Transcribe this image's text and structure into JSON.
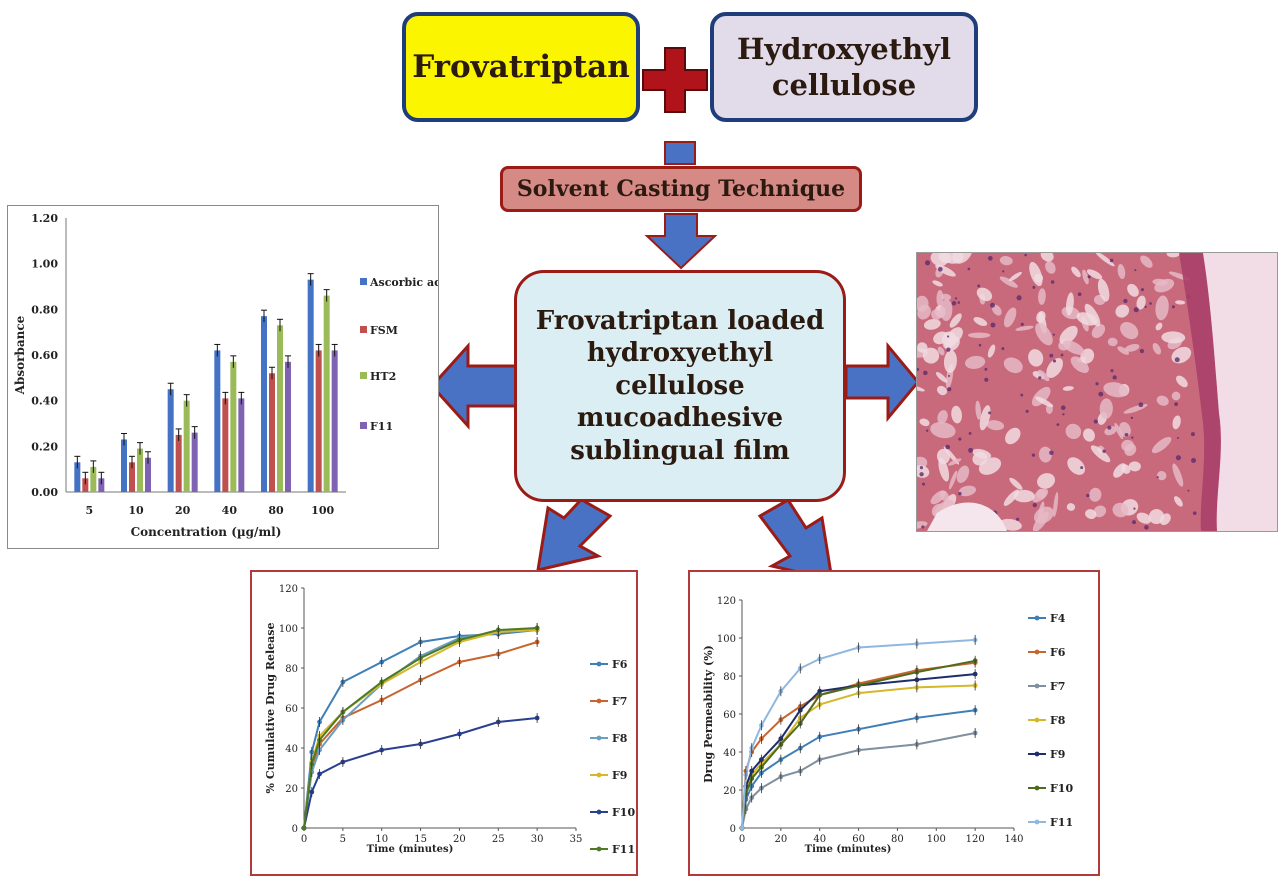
{
  "flow": {
    "drug": "Frovatriptan",
    "polymer_line1": "Hydroxyethyl",
    "polymer_line2": "cellulose",
    "technique": "Solvent Casting Technique",
    "product_lines": [
      "Frovatriptan loaded",
      "hydroxyethyl",
      "cellulose",
      "mucoadhesive",
      "sublingual film"
    ]
  },
  "colors": {
    "drug_box": "#fbf500",
    "polymer_box": "#e2dbea",
    "technique_box": "#d58a86",
    "product_box": "#dbeef3",
    "arrow_fill": "#4a72c4",
    "arrow_stroke": "#9b1b17",
    "plus": "#b0141a"
  },
  "chart_data": [
    {
      "type": "bar",
      "xlabel": "Concentration (µg/ml)",
      "ylabel": "Absorbance",
      "ylim": [
        0,
        1.2
      ],
      "y_ticks": [
        "0.00",
        "0.20",
        "0.40",
        "0.60",
        "0.80",
        "1.00",
        "1.20"
      ],
      "categories": [
        "5",
        "10",
        "20",
        "40",
        "80",
        "100"
      ],
      "legend_position": "right",
      "series": [
        {
          "name": "Ascorbic acid",
          "color": "#4472c4",
          "values": [
            0.13,
            0.23,
            0.45,
            0.62,
            0.77,
            0.93
          ]
        },
        {
          "name": "FSM",
          "color": "#c0504d",
          "values": [
            0.06,
            0.13,
            0.25,
            0.41,
            0.52,
            0.62
          ]
        },
        {
          "name": "HT2",
          "color": "#9bbb59",
          "values": [
            0.11,
            0.19,
            0.4,
            0.57,
            0.73,
            0.86
          ]
        },
        {
          "name": "F11",
          "color": "#7f63b2",
          "values": [
            0.06,
            0.15,
            0.26,
            0.41,
            0.57,
            0.62
          ]
        }
      ]
    },
    {
      "type": "line",
      "xlabel": "Time (minutes)",
      "ylabel": "% Cumulative Drug Release",
      "xlim": [
        0,
        35
      ],
      "ylim": [
        0,
        120
      ],
      "x_ticks": [
        0,
        5,
        10,
        15,
        20,
        25,
        30,
        35
      ],
      "y_ticks": [
        0,
        20,
        40,
        60,
        80,
        100,
        120
      ],
      "legend_position": "right",
      "x": [
        0,
        1,
        2,
        5,
        10,
        15,
        20,
        25,
        30
      ],
      "series": [
        {
          "name": "F6",
          "color": "#3f7fb5",
          "values": [
            0,
            38,
            53,
            73,
            83,
            93,
            96,
            97,
            99
          ]
        },
        {
          "name": "F7",
          "color": "#c8642d",
          "values": [
            0,
            30,
            42,
            55,
            64,
            74,
            83,
            87,
            93
          ]
        },
        {
          "name": "F8",
          "color": "#6b9fc0",
          "values": [
            0,
            28,
            39,
            54,
            72,
            86,
            95,
            98,
            100
          ]
        },
        {
          "name": "F9",
          "color": "#d4b72a",
          "values": [
            0,
            33,
            46,
            58,
            72,
            83,
            93,
            98,
            99
          ]
        },
        {
          "name": "F10",
          "color": "#2a3f8f",
          "values": [
            0,
            18,
            27,
            33,
            39,
            42,
            47,
            53,
            55
          ]
        },
        {
          "name": "F11",
          "color": "#4e7a26",
          "values": [
            0,
            32,
            44,
            58,
            73,
            85,
            94,
            99,
            100
          ]
        }
      ]
    },
    {
      "type": "line",
      "xlabel": "Time (minutes)",
      "ylabel": "Drug Permeability (%)",
      "xlim": [
        0,
        140
      ],
      "ylim": [
        0,
        120
      ],
      "x_ticks": [
        0,
        20,
        40,
        60,
        80,
        100,
        120,
        140
      ],
      "y_ticks": [
        0,
        20,
        40,
        60,
        80,
        100,
        120
      ],
      "legend_position": "right",
      "x": [
        0,
        2,
        5,
        10,
        20,
        30,
        40,
        60,
        90,
        120
      ],
      "series": [
        {
          "name": "F4",
          "color": "#3f7fb5",
          "values": [
            0,
            15,
            22,
            29,
            36,
            42,
            48,
            52,
            58,
            62
          ]
        },
        {
          "name": "F6",
          "color": "#c8642d",
          "values": [
            0,
            30,
            40,
            47,
            57,
            64,
            70,
            76,
            83,
            87
          ]
        },
        {
          "name": "F7",
          "color": "#7f8f9f",
          "values": [
            0,
            10,
            16,
            21,
            27,
            30,
            36,
            41,
            44,
            50
          ]
        },
        {
          "name": "F8",
          "color": "#d4b72a",
          "values": [
            0,
            20,
            28,
            34,
            44,
            58,
            65,
            71,
            74,
            75
          ]
        },
        {
          "name": "F9",
          "color": "#1f2d6b",
          "values": [
            0,
            22,
            30,
            36,
            47,
            62,
            72,
            75,
            78,
            81
          ]
        },
        {
          "name": "F10",
          "color": "#4e6b1e",
          "values": [
            0,
            18,
            26,
            32,
            44,
            55,
            70,
            75,
            82,
            88
          ]
        },
        {
          "name": "F11",
          "color": "#8fb8e0",
          "values": [
            0,
            28,
            42,
            54,
            72,
            84,
            89,
            95,
            97,
            99
          ]
        }
      ]
    }
  ]
}
